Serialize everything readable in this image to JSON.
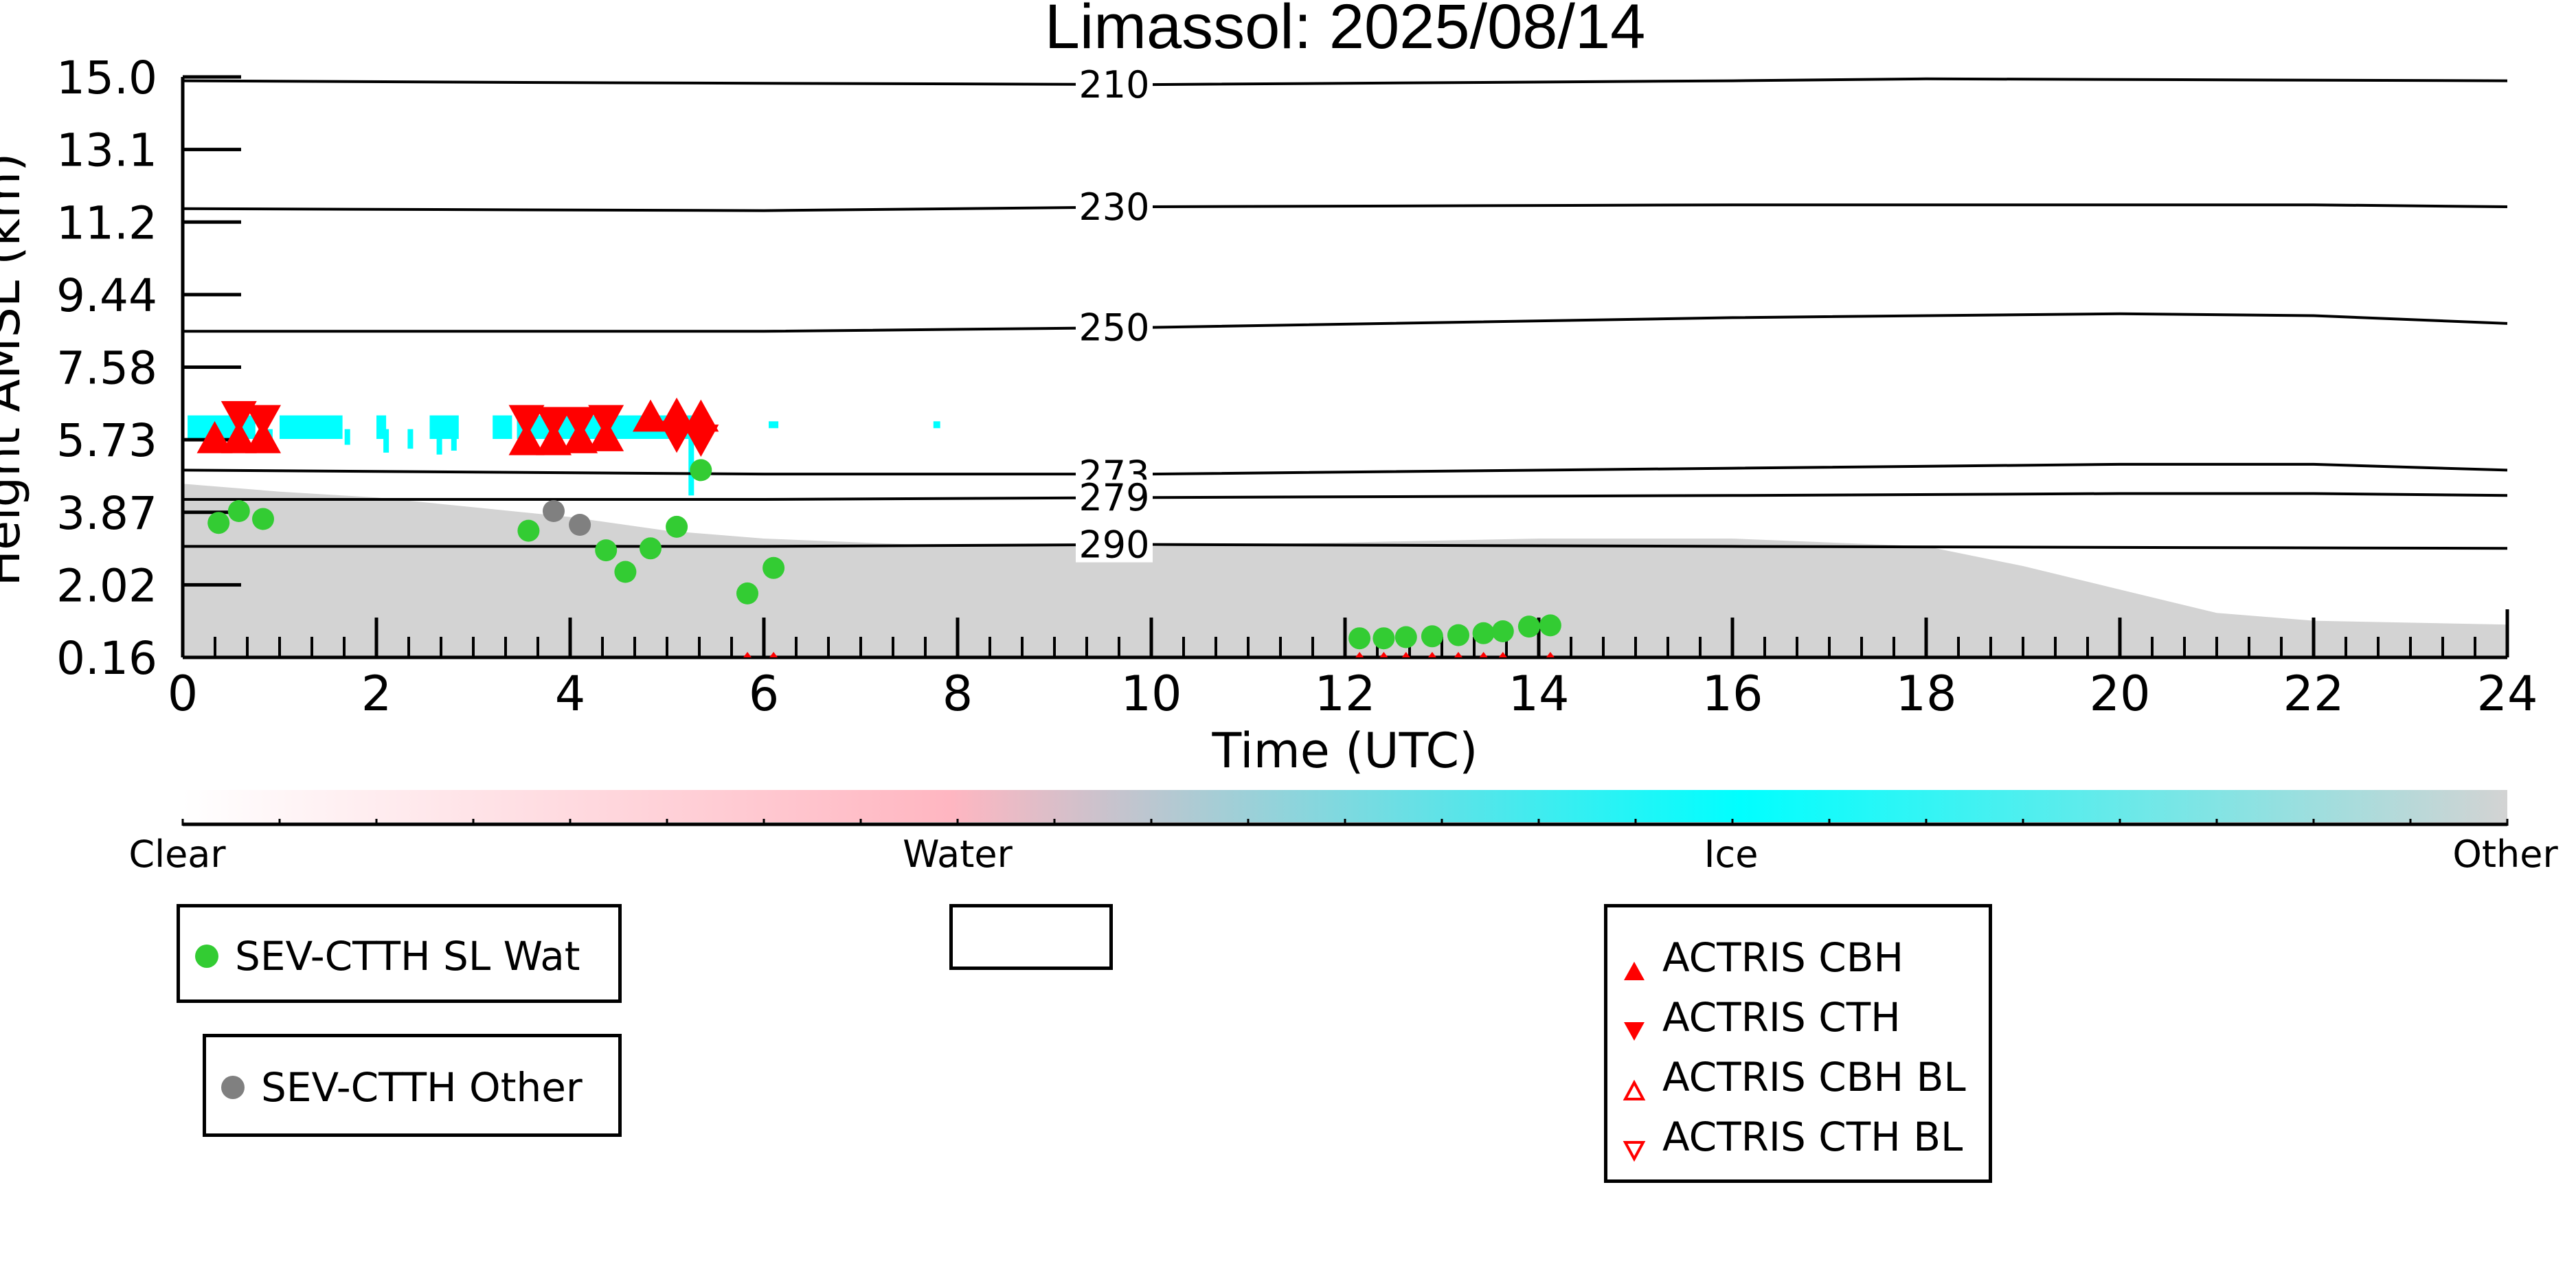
{
  "chart_data": {
    "type": "scatter",
    "title": "Limassol: 2025/08/14",
    "xlabel": "Time (UTC)",
    "ylabel": "Height AMSL (km)",
    "xlim": [
      0,
      24
    ],
    "ylim": [
      0.16,
      15.0
    ],
    "x_ticks": [
      "0",
      "2",
      "4",
      "6",
      "8",
      "10",
      "12",
      "14",
      "16",
      "18",
      "20",
      "22",
      "24"
    ],
    "y_ticks": [
      "0.16",
      "2.02",
      "3.87",
      "5.73",
      "7.58",
      "9.44",
      "11.2",
      "13.1",
      "15.0"
    ],
    "y_tick_values": [
      0.16,
      2.02,
      3.87,
      5.73,
      7.58,
      9.44,
      11.2,
      13.1,
      15.0
    ],
    "temperature_contours": [
      {
        "label": "210",
        "points": [
          [
            0,
            14.9
          ],
          [
            4,
            14.85
          ],
          [
            10,
            14.8
          ],
          [
            16,
            14.9
          ],
          [
            18,
            14.95
          ],
          [
            24,
            14.9
          ]
        ]
      },
      {
        "label": "230",
        "points": [
          [
            0,
            11.55
          ],
          [
            6,
            11.5
          ],
          [
            10,
            11.6
          ],
          [
            16,
            11.65
          ],
          [
            22,
            11.65
          ],
          [
            24,
            11.6
          ]
        ]
      },
      {
        "label": "250",
        "points": [
          [
            0,
            8.5
          ],
          [
            6,
            8.5
          ],
          [
            10,
            8.6
          ],
          [
            16,
            8.85
          ],
          [
            20,
            8.95
          ],
          [
            22,
            8.9
          ],
          [
            24,
            8.7
          ]
        ]
      },
      {
        "label": "273",
        "points": [
          [
            0,
            4.95
          ],
          [
            6,
            4.85
          ],
          [
            10,
            4.85
          ],
          [
            16,
            5.0
          ],
          [
            20,
            5.1
          ],
          [
            22,
            5.1
          ],
          [
            24,
            4.95
          ]
        ]
      },
      {
        "label": "279",
        "points": [
          [
            0,
            4.2
          ],
          [
            6,
            4.2
          ],
          [
            10,
            4.25
          ],
          [
            16,
            4.3
          ],
          [
            20,
            4.35
          ],
          [
            22,
            4.35
          ],
          [
            24,
            4.3
          ]
        ]
      },
      {
        "label": "290",
        "points": [
          [
            0,
            3.0
          ],
          [
            6,
            3.0
          ],
          [
            10,
            3.05
          ],
          [
            16,
            3.0
          ],
          [
            24,
            2.95
          ]
        ]
      }
    ],
    "series": [
      {
        "name": "SEV-CTTH SL Wat",
        "color": "#33cc33",
        "marker": "circle",
        "points": [
          [
            0.37,
            3.6
          ],
          [
            0.58,
            3.9
          ],
          [
            0.83,
            3.7
          ],
          [
            3.57,
            3.4
          ],
          [
            4.37,
            2.9
          ],
          [
            4.57,
            2.35
          ],
          [
            4.83,
            2.95
          ],
          [
            5.1,
            3.5
          ],
          [
            5.35,
            4.95
          ],
          [
            5.83,
            1.8
          ],
          [
            6.1,
            2.45
          ],
          [
            12.15,
            0.65
          ],
          [
            12.4,
            0.65
          ],
          [
            12.63,
            0.68
          ],
          [
            12.9,
            0.7
          ],
          [
            13.17,
            0.73
          ],
          [
            13.43,
            0.78
          ],
          [
            13.63,
            0.83
          ],
          [
            13.9,
            0.95
          ],
          [
            14.12,
            0.98
          ]
        ]
      },
      {
        "name": "SEV-CTTH Other",
        "color": "#808080",
        "marker": "circle",
        "points": [
          [
            3.83,
            3.9
          ],
          [
            4.1,
            3.55
          ]
        ]
      },
      {
        "name": "ACTRIS CBH",
        "color": "#ff0000",
        "marker": "triangle-up",
        "points": [
          [
            0.33,
            5.75
          ],
          [
            0.58,
            5.75
          ],
          [
            0.83,
            5.75
          ],
          [
            3.55,
            5.7
          ],
          [
            3.83,
            5.7
          ],
          [
            4.1,
            5.75
          ],
          [
            4.37,
            5.8
          ],
          [
            4.83,
            6.3
          ],
          [
            5.1,
            6.35
          ],
          [
            5.35,
            6.3
          ]
        ]
      },
      {
        "name": "ACTRIS CTH",
        "color": "#ff0000",
        "marker": "triangle-down",
        "points": [
          [
            0.58,
            6.35
          ],
          [
            0.83,
            6.25
          ],
          [
            3.55,
            6.25
          ],
          [
            3.83,
            6.2
          ],
          [
            4.1,
            6.2
          ],
          [
            4.37,
            6.25
          ],
          [
            5.1,
            5.85
          ],
          [
            5.35,
            5.75
          ]
        ]
      },
      {
        "name": "ACTRIS CBH BL",
        "color": "#ff0000",
        "marker": "triangle-up-open",
        "points": []
      },
      {
        "name": "ACTRIS CTH BL",
        "color": "#ff0000",
        "marker": "triangle-down-open",
        "points": []
      }
    ],
    "colorbar": {
      "labels": [
        "Clear",
        "Water",
        "Ice",
        "Other"
      ],
      "colors": [
        "#ffffff",
        "#ffb6c1",
        "#00ffff",
        "#d3d3d3"
      ]
    },
    "legend_placement": "below"
  },
  "legend": {
    "sev_wat": "SEV-CTTH SL Wat",
    "sev_other": "SEV-CTTH Other",
    "actris_cbh": "ACTRIS CBH",
    "actris_cth": "ACTRIS CTH",
    "actris_cbh_bl": "ACTRIS CBH BL",
    "actris_cth_bl": "ACTRIS CTH BL"
  }
}
